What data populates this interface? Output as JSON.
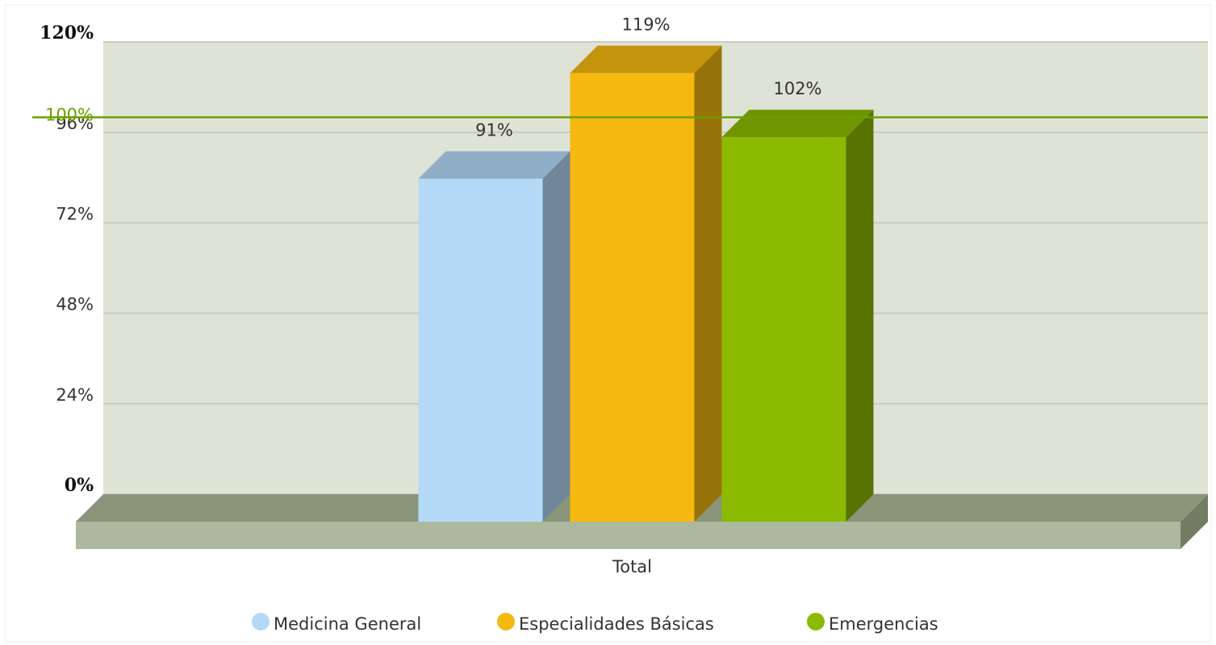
{
  "chart_data": {
    "type": "bar3d",
    "categories": [
      "Total"
    ],
    "series": [
      {
        "name": "Medicina General",
        "color": "#b3d9f7",
        "values": [
          91
        ],
        "value_labels": [
          "91%"
        ]
      },
      {
        "name": "Especialidades Básicas",
        "color": "#f5b90f",
        "values": [
          119
        ],
        "value_labels": [
          "119%"
        ]
      },
      {
        "name": "Emergencias",
        "color": "#8cba00",
        "values": [
          102
        ],
        "value_labels": [
          "102%"
        ]
      }
    ],
    "ylim": [
      0,
      120
    ],
    "yticks": [
      {
        "value": 0,
        "label": "0%"
      },
      {
        "value": 24,
        "label": "24%"
      },
      {
        "value": 48,
        "label": "48%"
      },
      {
        "value": 72,
        "label": "72%"
      },
      {
        "value": 96,
        "label": "96%"
      },
      {
        "value": 120,
        "label": "120%"
      }
    ],
    "grid": true,
    "trendline": {
      "value": 100,
      "label": "100%",
      "color": "#6aa000"
    },
    "legend": "bottom"
  }
}
